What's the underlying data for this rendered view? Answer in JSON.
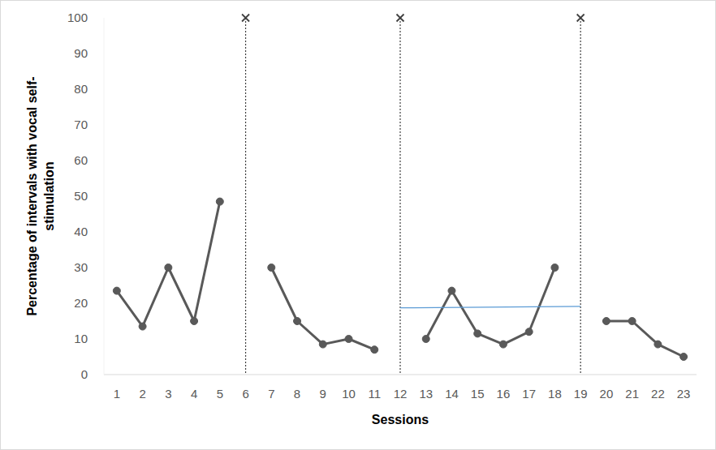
{
  "chart_data": {
    "type": "line",
    "x_label": "Sessions",
    "y_label": "Percentage of intervals with vocal self-stimulation",
    "categories": [
      "1",
      "2",
      "3",
      "4",
      "5",
      "6",
      "7",
      "8",
      "9",
      "10",
      "11",
      "12",
      "13",
      "14",
      "15",
      "16",
      "17",
      "18",
      "19",
      "20",
      "21",
      "22",
      "23"
    ],
    "ylim": [
      0,
      100
    ],
    "yticks": [
      0,
      10,
      20,
      30,
      40,
      50,
      60,
      70,
      80,
      90,
      100
    ],
    "grid": false,
    "series": [
      {
        "type": "line",
        "color": "#595959",
        "marker": "circle",
        "line_style": "solid",
        "values": [
          23.5,
          13.5,
          30,
          15,
          48.5,
          null,
          30,
          15,
          8.5,
          10,
          7,
          null,
          10,
          23.5,
          11.5,
          8.5,
          12,
          30,
          null,
          15,
          15,
          8.5,
          5
        ]
      },
      {
        "type": "drop",
        "color": "#404040",
        "marker": "x",
        "line_style": "dotted",
        "x": [
          "6",
          "12",
          "19"
        ],
        "values": [
          100,
          100,
          100
        ]
      },
      {
        "type": "line",
        "color": "#5b9bd5",
        "marker": "none",
        "line_style": "solid",
        "x": [
          "12",
          "19"
        ],
        "values": [
          18.7,
          19.1
        ]
      }
    ]
  }
}
